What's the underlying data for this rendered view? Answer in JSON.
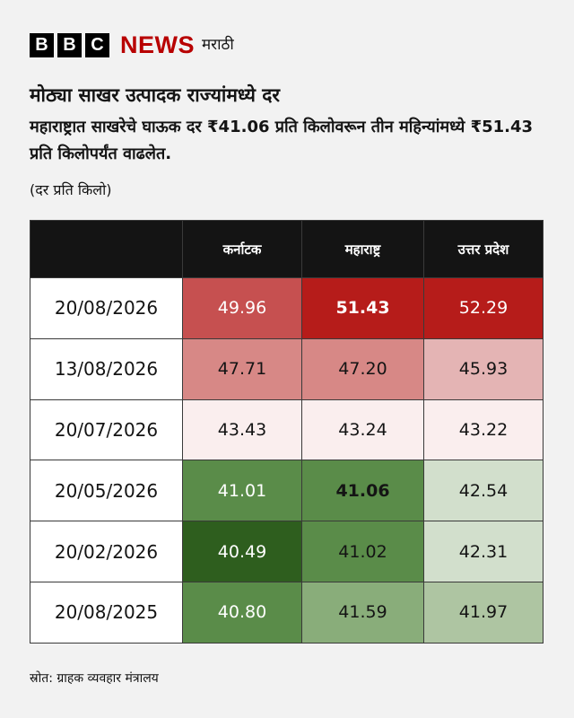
{
  "brand": {
    "letters": [
      "B",
      "B",
      "C"
    ],
    "news": "NEWS",
    "service": "मराठी"
  },
  "title": "मोठ्या साखर उत्पादक राज्यांमध्ये दर",
  "subtitle": "महाराष्ट्रात साखरेचे घाऊक दर ₹41.06 प्रति किलोवरून तीन महिन्यांमध्ये ₹51.43 प्रति किलोपर्यंत वाढलेत.",
  "unit_note": "(दर प्रति किलो)",
  "source": "स्रोत:  ग्राहक व्यवहार मंत्रालय",
  "colors": {
    "dark_red": "#b61c1a",
    "red": "#c65050",
    "light_red": "#d78886",
    "pale_red": "#e4b4b4",
    "near_white_red": "#faeeee",
    "dark_green": "#2e5e1e",
    "green": "#5a8c49",
    "light_green": "#89ad7a",
    "pale_green": "#aec5a2",
    "very_pale_green": "#d2dfcc"
  },
  "chart_data": {
    "type": "table",
    "columns": [
      "",
      "कर्नाटक",
      "महाराष्ट्र",
      "उत्तर प्रदेश"
    ],
    "rows": [
      {
        "date": "20/08/2026",
        "values": [
          "49.96",
          "51.43",
          "52.29"
        ],
        "bold": [
          false,
          true,
          false
        ],
        "colors": [
          "#c65050",
          "#b61c1a",
          "#b61c1a"
        ],
        "text": [
          "#fff",
          "#fff",
          "#fff"
        ]
      },
      {
        "date": "13/08/2026",
        "values": [
          "47.71",
          "47.20",
          "45.93"
        ],
        "bold": [
          false,
          false,
          false
        ],
        "colors": [
          "#d78886",
          "#d78886",
          "#e4b4b4"
        ],
        "text": [
          "#141414",
          "#141414",
          "#141414"
        ]
      },
      {
        "date": "20/07/2026",
        "values": [
          "43.43",
          "43.24",
          "43.22"
        ],
        "bold": [
          false,
          false,
          false
        ],
        "colors": [
          "#faeeee",
          "#faeeee",
          "#faeeee"
        ],
        "text": [
          "#141414",
          "#141414",
          "#141414"
        ]
      },
      {
        "date": "20/05/2026",
        "values": [
          "41.01",
          "41.06",
          "42.54"
        ],
        "bold": [
          false,
          true,
          false
        ],
        "colors": [
          "#5a8c49",
          "#5a8c49",
          "#d2dfcc"
        ],
        "text": [
          "#fff",
          "#141414",
          "#141414"
        ]
      },
      {
        "date": "20/02/2026",
        "values": [
          "40.49",
          "41.02",
          "42.31"
        ],
        "bold": [
          false,
          false,
          false
        ],
        "colors": [
          "#2e5e1e",
          "#5a8c49",
          "#d2dfcc"
        ],
        "text": [
          "#fff",
          "#141414",
          "#141414"
        ]
      },
      {
        "date": "20/08/2025",
        "values": [
          "40.80",
          "41.59",
          "41.97"
        ],
        "bold": [
          false,
          false,
          false
        ],
        "colors": [
          "#5a8c49",
          "#89ad7a",
          "#aec5a2"
        ],
        "text": [
          "#fff",
          "#141414",
          "#141414"
        ]
      }
    ]
  }
}
